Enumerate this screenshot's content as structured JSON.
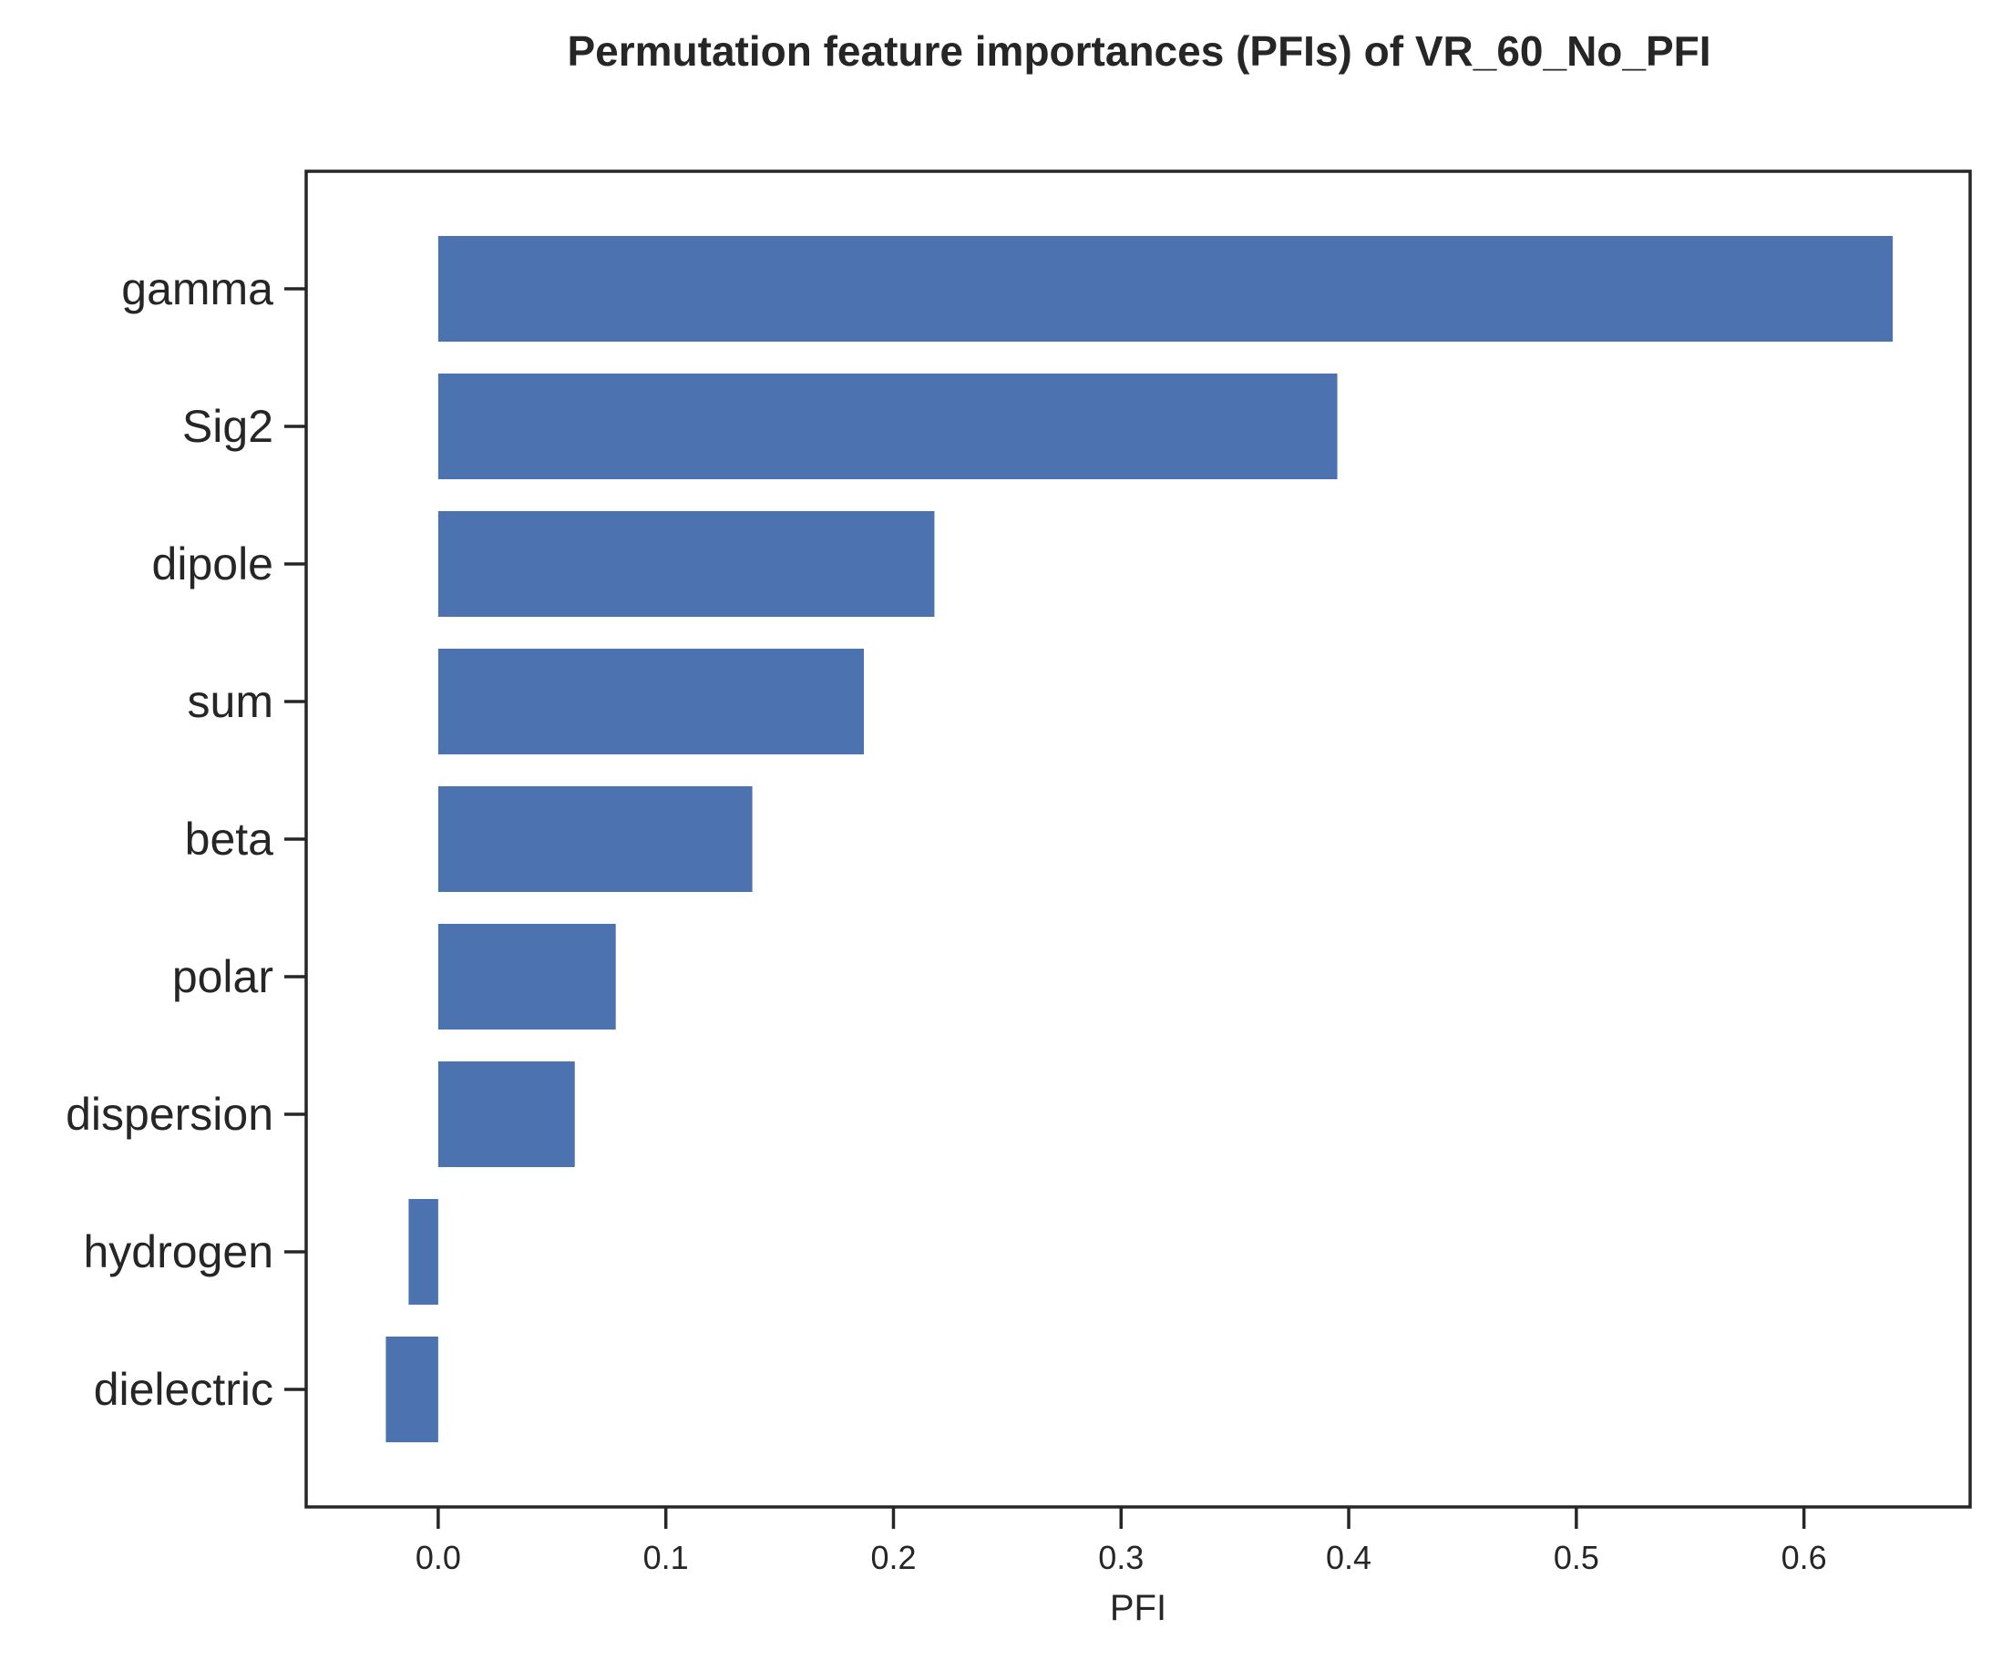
{
  "chart_data": {
    "type": "bar",
    "orientation": "horizontal",
    "title": "Permutation feature importances (PFIs) of VR_60_No_PFI",
    "xlabel": "PFI",
    "ylabel": "",
    "categories": [
      "gamma",
      "Sig2",
      "dipole",
      "sum",
      "beta",
      "polar",
      "dispersion",
      "hydrogen",
      "dielectric"
    ],
    "values": [
      0.639,
      0.395,
      0.218,
      0.187,
      0.138,
      0.078,
      0.06,
      -0.013,
      -0.023
    ],
    "xlim": [
      -0.058,
      0.673
    ],
    "xticks": [
      0.0,
      0.1,
      0.2,
      0.3,
      0.4,
      0.5,
      0.6
    ],
    "xtick_labels": [
      "0.0",
      "0.1",
      "0.2",
      "0.3",
      "0.4",
      "0.5",
      "0.6"
    ],
    "grid": false,
    "legend": "none",
    "bar_color": "#4c72b0"
  }
}
